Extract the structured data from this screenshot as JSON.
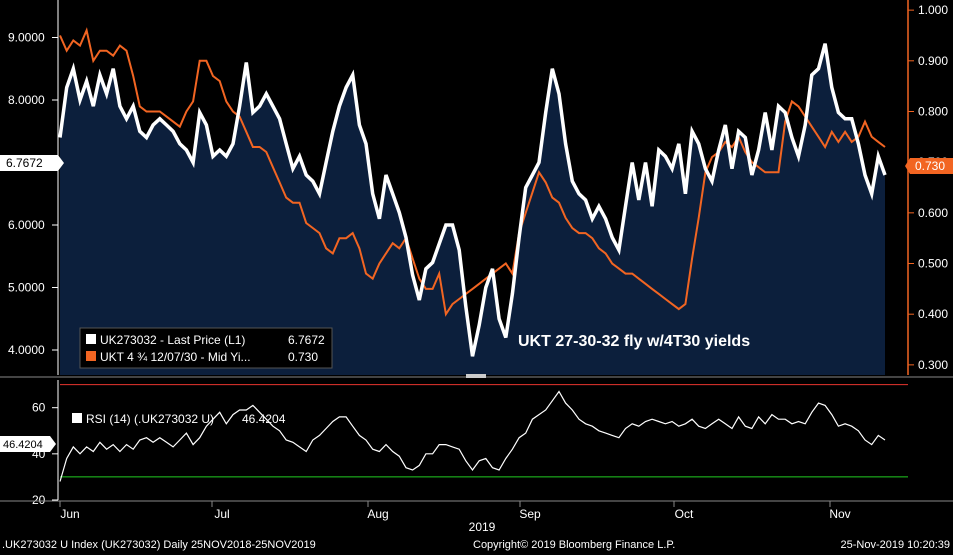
{
  "chart_data": [
    {
      "type": "line",
      "annotation": "UKT 27-30-32 fly w/4T30 yields",
      "left_axis": {
        "ylim": [
          3.6,
          9.6
        ],
        "ticks": [
          "4.0000",
          "5.0000",
          "6.0000",
          "7.0000",
          "8.0000",
          "9.0000"
        ],
        "current_label": "6.7672"
      },
      "right_axis": {
        "ylim": [
          0.28,
          1.02
        ],
        "ticks": [
          "0.300",
          "0.400",
          "0.500",
          "0.600",
          "0.700",
          "0.800",
          "0.900",
          "1.000"
        ],
        "current_label": "0.730"
      },
      "series": [
        {
          "name": "UK273032 - Last Price (L1)",
          "legend_value": "6.7672",
          "color": "#ffffff",
          "fill": "#0c1f3c",
          "axis": "left",
          "values": [
            7.4,
            8.2,
            8.5,
            8.0,
            8.3,
            7.9,
            8.4,
            8.1,
            8.5,
            7.9,
            7.7,
            7.9,
            7.5,
            7.4,
            7.6,
            7.7,
            7.6,
            7.5,
            7.3,
            7.2,
            7.0,
            7.8,
            7.6,
            7.1,
            7.2,
            7.1,
            7.3,
            7.9,
            8.6,
            7.8,
            7.9,
            8.1,
            7.9,
            7.7,
            7.3,
            6.9,
            7.1,
            6.8,
            6.7,
            6.5,
            7.0,
            7.5,
            7.9,
            8.2,
            8.4,
            7.6,
            7.3,
            6.5,
            6.1,
            6.8,
            6.5,
            6.2,
            5.8,
            5.2,
            4.8,
            5.3,
            5.4,
            5.7,
            6.0,
            6.0,
            5.6,
            4.7,
            3.9,
            4.4,
            5.0,
            5.3,
            4.5,
            4.2,
            4.9,
            5.8,
            6.6,
            6.8,
            7.0,
            7.8,
            8.5,
            8.1,
            7.3,
            6.7,
            6.5,
            6.4,
            6.1,
            6.3,
            6.1,
            5.8,
            5.6,
            6.3,
            7.0,
            6.4,
            7.0,
            6.3,
            7.2,
            7.1,
            6.9,
            7.3,
            6.5,
            7.5,
            7.3,
            6.9,
            6.7,
            7.2,
            7.6,
            6.9,
            7.5,
            7.4,
            6.8,
            7.2,
            7.8,
            7.2,
            7.9,
            7.8,
            7.4,
            7.1,
            7.6,
            8.4,
            8.5,
            8.9,
            8.2,
            7.8,
            7.7,
            7.7,
            7.3,
            6.8,
            6.5,
            7.1,
            6.8
          ],
          "values_note": ""
        },
        {
          "name": "UKT 4 ¾ 12/07/30 - Mid Yi...",
          "legend_value": "0.730",
          "color": "#f26522",
          "axis": "right",
          "values": [
            0.95,
            0.92,
            0.94,
            0.93,
            0.96,
            0.9,
            0.92,
            0.92,
            0.91,
            0.93,
            0.92,
            0.87,
            0.81,
            0.8,
            0.8,
            0.8,
            0.79,
            0.78,
            0.77,
            0.8,
            0.82,
            0.9,
            0.9,
            0.87,
            0.86,
            0.82,
            0.8,
            0.79,
            0.76,
            0.73,
            0.73,
            0.72,
            0.69,
            0.66,
            0.63,
            0.62,
            0.62,
            0.58,
            0.57,
            0.56,
            0.53,
            0.52,
            0.55,
            0.55,
            0.56,
            0.53,
            0.48,
            0.47,
            0.5,
            0.52,
            0.54,
            0.53,
            0.55,
            0.51,
            0.47,
            0.45,
            0.45,
            0.48,
            0.4,
            0.42,
            0.43,
            0.44,
            0.45,
            0.46,
            0.47,
            0.48,
            0.49,
            0.5,
            0.48,
            0.56,
            0.6,
            0.64,
            0.68,
            0.66,
            0.63,
            0.62,
            0.59,
            0.57,
            0.56,
            0.56,
            0.55,
            0.53,
            0.52,
            0.5,
            0.49,
            0.48,
            0.48,
            0.47,
            0.46,
            0.45,
            0.44,
            0.43,
            0.42,
            0.41,
            0.42,
            0.51,
            0.59,
            0.68,
            0.71,
            0.72,
            0.74,
            0.73,
            0.75,
            0.72,
            0.7,
            0.69,
            0.68,
            0.68,
            0.68,
            0.78,
            0.82,
            0.81,
            0.79,
            0.77,
            0.75,
            0.73,
            0.76,
            0.74,
            0.76,
            0.74,
            0.75,
            0.78,
            0.75,
            0.74,
            0.73
          ],
          "values_note": ""
        }
      ]
    },
    {
      "type": "line",
      "ylim": [
        20,
        72
      ],
      "ticks": [
        "20",
        "40",
        "60"
      ],
      "current_label": "46.4204",
      "reference_lines": [
        {
          "value": 70,
          "color": "#e8352e"
        },
        {
          "value": 30,
          "color": "#22cc22"
        }
      ],
      "series": [
        {
          "name": "RSI (14) (.UK273032 U)",
          "legend_value": "46.4204",
          "color": "#ffffff",
          "values": [
            28,
            38,
            43,
            40,
            43,
            41,
            45,
            42,
            44,
            41,
            44,
            42,
            46,
            47,
            45,
            47,
            45,
            43,
            46,
            49,
            44,
            47,
            52,
            55,
            58,
            53,
            57,
            59,
            59,
            61,
            58,
            55,
            52,
            50,
            46,
            45,
            43,
            41,
            46,
            48,
            51,
            54,
            56,
            56,
            52,
            48,
            46,
            42,
            41,
            44,
            41,
            39,
            34,
            33,
            35,
            40,
            40,
            44,
            44,
            43,
            42,
            37,
            33,
            37,
            38,
            34,
            33,
            38,
            42,
            47,
            49,
            55,
            57,
            59,
            63,
            67,
            62,
            59,
            55,
            53,
            52,
            50,
            49,
            48,
            47,
            51,
            53,
            52,
            54,
            55,
            54,
            53,
            54,
            52,
            53,
            55,
            52,
            51,
            53,
            55,
            53,
            51,
            56,
            52,
            51,
            56,
            53,
            57,
            55,
            55,
            53,
            54,
            53,
            58,
            62,
            61,
            57,
            52,
            53,
            52,
            50,
            46,
            44,
            48,
            46
          ],
          "values_note": ""
        }
      ]
    }
  ],
  "x_axis": {
    "month_ticks": [
      "Jun",
      "Jul",
      "Aug",
      "Sep",
      "Oct",
      "Nov"
    ],
    "year_label": "2019"
  },
  "footer": {
    "left": ".UK273032 U Index (UK273032)  Daily 25NOV2018-25NOV2019",
    "center": "Copyright© 2019 Bloomberg Finance L.P.",
    "right": "25-Nov-2019 10:20:39"
  },
  "colors": {
    "background": "#000000",
    "fill": "#0c1f3c",
    "orange": "#f26522",
    "white": "#ffffff"
  }
}
